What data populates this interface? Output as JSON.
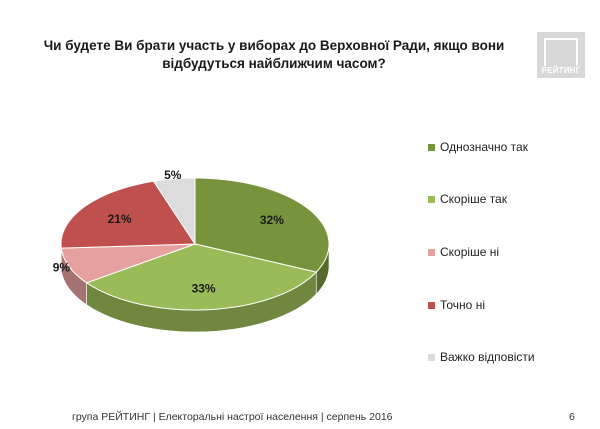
{
  "title": "Чи будете Ви брати участь у виборах до Верховної Ради, якщо вони відбудуться найближчим часом?",
  "logo": {
    "text": "РЕЙТИНГ",
    "color": "#d8d8d8"
  },
  "chart_data": {
    "type": "pie",
    "title": "Чи будете Ви брати участь у виборах до Верховної Ради, якщо вони відбудуться найближчим часом?",
    "style": "3d",
    "categories": [
      "Однозначно так",
      "Скоріше  так",
      "Скоріше  ні",
      "Точно ні",
      "Важко відповісти"
    ],
    "values": [
      32,
      33,
      9,
      21,
      5
    ],
    "data_labels": [
      "32%",
      "33%",
      "9%",
      "21%",
      "5%"
    ],
    "colors": [
      "#77933c",
      "#9bbb59",
      "#e6a0a0",
      "#c0504d",
      "#dcdcdc"
    ],
    "legend_position": "right"
  },
  "footer": "група РЕЙТИНГ  |  Електоральні настрої населення  |  серпень 2016",
  "page_number": "6"
}
